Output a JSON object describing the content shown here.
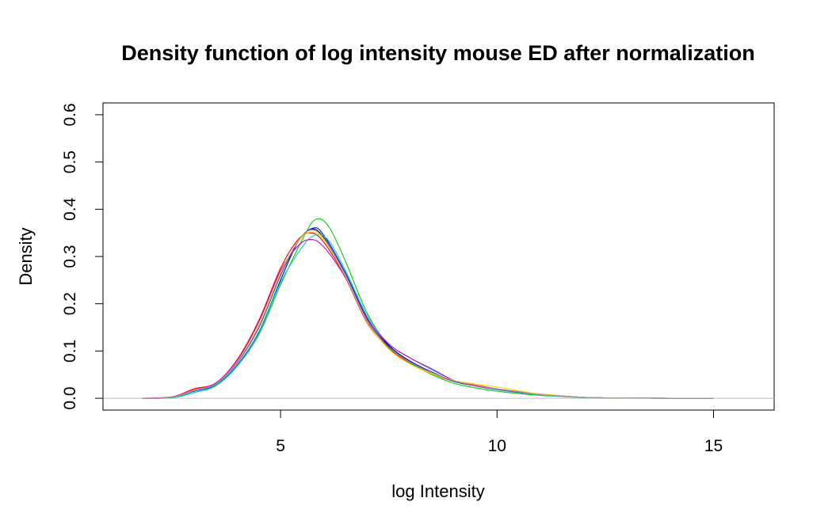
{
  "chart_data": {
    "type": "line",
    "title": "Density function of log intensity mouse ED after normalization",
    "xlabel": "log Intensity",
    "ylabel": "Density",
    "xlim": [
      0.9,
      16.4
    ],
    "ylim": [
      -0.025,
      0.625
    ],
    "x_ticks": [
      5,
      10,
      15
    ],
    "x_tick_labels": [
      "5",
      "10",
      "15"
    ],
    "y_ticks": [
      0.0,
      0.1,
      0.2,
      0.3,
      0.4,
      0.5,
      0.6
    ],
    "y_tick_labels": [
      "0.0",
      "0.1",
      "0.2",
      "0.3",
      "0.4",
      "0.5",
      "0.6"
    ],
    "grid": false,
    "legend": "none",
    "baseline": {
      "y": 0,
      "color": "#bebebe"
    },
    "series": [
      {
        "color": "#000000",
        "x": [
          1.8,
          2.5,
          3,
          3.5,
          4,
          4.5,
          5,
          5.4,
          5.7,
          6,
          6.5,
          7,
          7.5,
          8,
          8.5,
          9,
          9.5,
          10,
          10.5,
          11,
          12,
          13,
          14,
          15
        ],
        "y": [
          0,
          0.002,
          0.016,
          0.03,
          0.075,
          0.15,
          0.26,
          0.33,
          0.358,
          0.34,
          0.26,
          0.165,
          0.11,
          0.078,
          0.055,
          0.036,
          0.026,
          0.019,
          0.013,
          0.008,
          0.002,
          0.0005,
          0,
          0
        ]
      },
      {
        "color": "#ff0000",
        "x": [
          1.8,
          2.5,
          3,
          3.5,
          4,
          4.5,
          5,
          5.4,
          5.7,
          6,
          6.5,
          7,
          7.5,
          8,
          8.5,
          9,
          9.5,
          10,
          10.5,
          11,
          12,
          13,
          14,
          15
        ],
        "y": [
          0,
          0.003,
          0.02,
          0.032,
          0.082,
          0.165,
          0.275,
          0.335,
          0.35,
          0.33,
          0.255,
          0.16,
          0.106,
          0.074,
          0.052,
          0.036,
          0.028,
          0.02,
          0.014,
          0.009,
          0.002,
          0.0005,
          0,
          0
        ]
      },
      {
        "color": "#00cd00",
        "x": [
          1.8,
          2.5,
          3,
          3.5,
          4,
          4.5,
          5,
          5.5,
          5.8,
          6.1,
          6.5,
          7,
          7.5,
          8,
          8.5,
          9,
          9.5,
          10,
          10.5,
          11,
          12,
          13,
          14,
          15
        ],
        "y": [
          0,
          0.001,
          0.012,
          0.026,
          0.068,
          0.135,
          0.24,
          0.335,
          0.378,
          0.365,
          0.29,
          0.18,
          0.112,
          0.075,
          0.05,
          0.032,
          0.022,
          0.015,
          0.01,
          0.006,
          0.0015,
          0.0005,
          0,
          0
        ]
      },
      {
        "color": "#0000ff",
        "x": [
          1.8,
          2.5,
          3,
          3.5,
          4,
          4.5,
          5,
          5.4,
          5.75,
          6,
          6.5,
          7,
          7.5,
          8,
          8.5,
          9,
          9.5,
          10,
          10.5,
          11,
          12,
          13,
          14,
          15
        ],
        "y": [
          0,
          0.002,
          0.015,
          0.028,
          0.07,
          0.14,
          0.25,
          0.33,
          0.36,
          0.345,
          0.265,
          0.17,
          0.112,
          0.078,
          0.055,
          0.036,
          0.026,
          0.019,
          0.013,
          0.008,
          0.002,
          0.0005,
          0,
          0
        ]
      },
      {
        "color": "#00cdcd",
        "x": [
          1.8,
          2.5,
          3,
          3.5,
          4,
          4.5,
          5,
          5.5,
          5.8,
          6.1,
          6.5,
          7,
          7.5,
          8,
          8.5,
          9,
          9.5,
          10,
          10.5,
          11,
          12,
          13,
          14,
          15
        ],
        "y": [
          0,
          0.001,
          0.012,
          0.027,
          0.068,
          0.138,
          0.245,
          0.32,
          0.345,
          0.335,
          0.27,
          0.175,
          0.115,
          0.085,
          0.06,
          0.038,
          0.026,
          0.018,
          0.012,
          0.007,
          0.0015,
          0.0005,
          0,
          0
        ]
      },
      {
        "color": "#cd00cd",
        "x": [
          1.8,
          2.5,
          3,
          3.5,
          4,
          4.5,
          5,
          5.4,
          5.7,
          6,
          6.5,
          7,
          7.5,
          8,
          8.5,
          9,
          9.5,
          10,
          10.5,
          11,
          12,
          13,
          14,
          15
        ],
        "y": [
          0,
          0.003,
          0.018,
          0.032,
          0.08,
          0.162,
          0.27,
          0.322,
          0.336,
          0.32,
          0.255,
          0.168,
          0.115,
          0.085,
          0.062,
          0.038,
          0.026,
          0.019,
          0.013,
          0.008,
          0.002,
          0.0005,
          0,
          0
        ]
      },
      {
        "color": "#ffd700",
        "x": [
          1.8,
          2.5,
          3,
          3.5,
          4,
          4.5,
          5,
          5.4,
          5.7,
          6,
          6.5,
          7,
          7.5,
          8,
          8.5,
          9,
          9.5,
          10,
          10.5,
          11,
          12,
          13,
          14,
          15
        ],
        "y": [
          0,
          0.002,
          0.017,
          0.03,
          0.077,
          0.155,
          0.265,
          0.33,
          0.352,
          0.335,
          0.258,
          0.162,
          0.104,
          0.072,
          0.052,
          0.038,
          0.03,
          0.024,
          0.016,
          0.009,
          0.002,
          0.0005,
          0,
          0
        ]
      },
      {
        "color": "#9e9e9e",
        "x": [
          1.8,
          2.5,
          3,
          3.5,
          4,
          4.5,
          5,
          5.4,
          5.7,
          6,
          6.5,
          7,
          7.5,
          8,
          8.5,
          9,
          9.5,
          10,
          10.5,
          11,
          12,
          13,
          14,
          15
        ],
        "y": [
          0,
          0.002,
          0.016,
          0.03,
          0.076,
          0.152,
          0.262,
          0.332,
          0.356,
          0.338,
          0.26,
          0.164,
          0.108,
          0.076,
          0.054,
          0.037,
          0.027,
          0.02,
          0.014,
          0.008,
          0.002,
          0.0005,
          0,
          0
        ]
      }
    ]
  }
}
